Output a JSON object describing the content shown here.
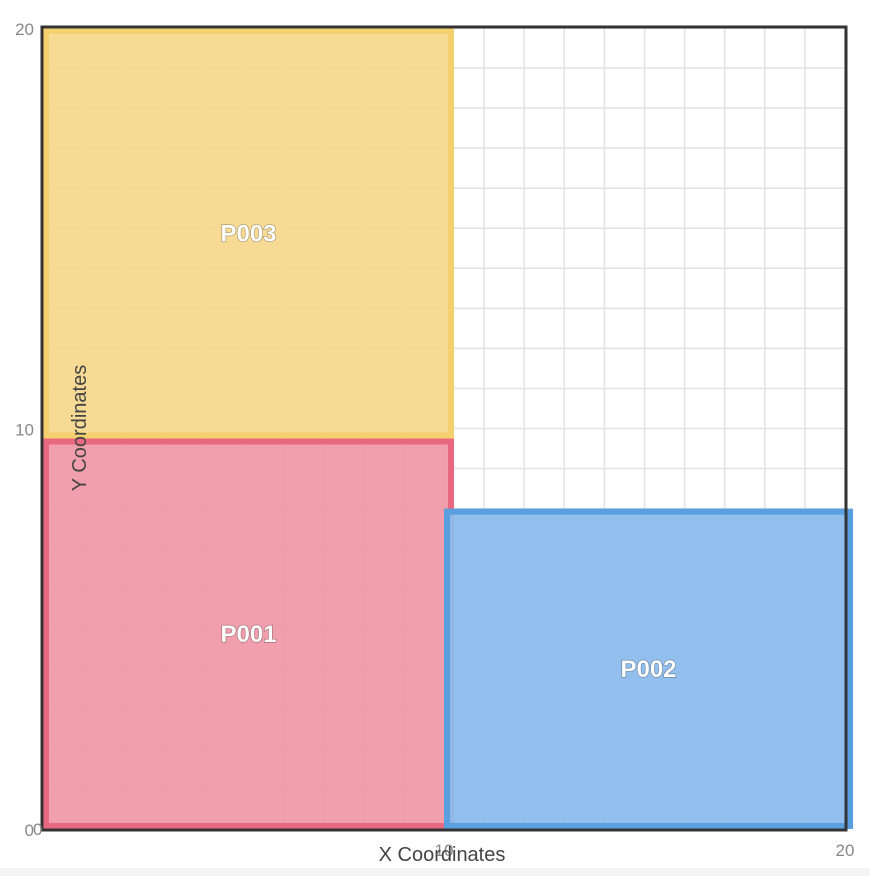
{
  "chart_data": {
    "type": "rect-layout",
    "xlabel": "X Coordinates",
    "ylabel": "Y Coordinates",
    "xlim": [
      0,
      20
    ],
    "ylim": [
      0,
      20
    ],
    "grid": true,
    "grid_step": 1,
    "x_ticks": [
      {
        "value": 0,
        "label": "0"
      },
      {
        "value": 10,
        "label": "10"
      },
      {
        "value": 20,
        "label": "20"
      }
    ],
    "y_ticks": [
      {
        "value": 0,
        "label": "0"
      },
      {
        "value": 10,
        "label": "10"
      },
      {
        "value": 20,
        "label": "20"
      }
    ],
    "rectangles": [
      {
        "id": "P003",
        "x0": 0,
        "x1": 10.25,
        "y0": 9.75,
        "y1": 20,
        "fill": "#f7d98f",
        "stroke": "#f5d06e"
      },
      {
        "id": "P001",
        "x0": 0,
        "x1": 10.25,
        "y0": 0,
        "y1": 9.75,
        "fill": "#f09aa8",
        "stroke": "#e8687f"
      },
      {
        "id": "P002",
        "x0": 10,
        "x1": 20.2,
        "y0": 0,
        "y1": 8,
        "fill": "#8cbcec",
        "stroke": "#5aa0e0"
      }
    ]
  }
}
